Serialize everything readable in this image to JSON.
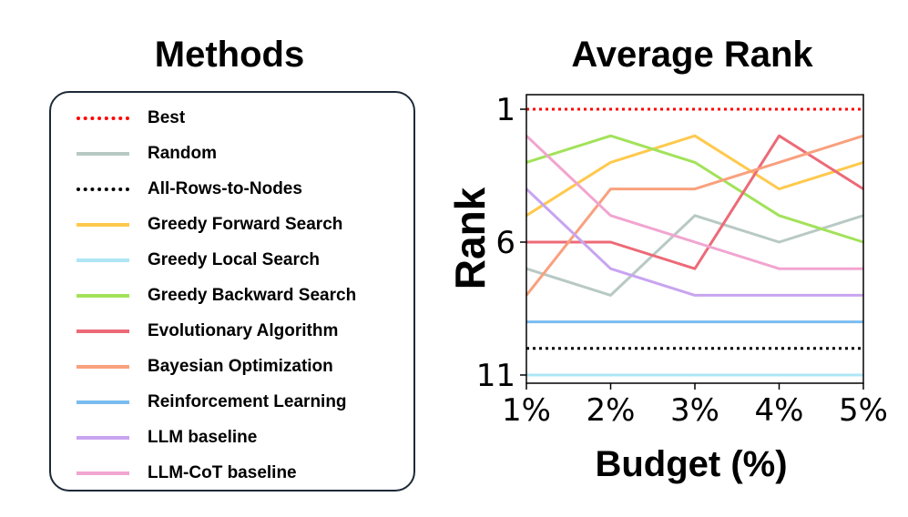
{
  "legend": {
    "title": "Methods",
    "items": [
      {
        "label": "Best",
        "color": "#ff0000",
        "dashed": true
      },
      {
        "label": "Random",
        "color": "#b8c9c4",
        "dashed": false
      },
      {
        "label": "All-Rows-to-Nodes",
        "color": "#000000",
        "dashed": true
      },
      {
        "label": "Greedy Forward Search",
        "color": "#ffc94d",
        "dashed": false
      },
      {
        "label": "Greedy Local Search",
        "color": "#aee6f5",
        "dashed": false
      },
      {
        "label": "Greedy Backward Search",
        "color": "#a2e25a",
        "dashed": false
      },
      {
        "label": "Evolutionary Algorithm",
        "color": "#ec6a77",
        "dashed": false
      },
      {
        "label": "Bayesian Optimization",
        "color": "#f9a07e",
        "dashed": false
      },
      {
        "label": "Reinforcement Learning",
        "color": "#79bcf0",
        "dashed": false
      },
      {
        "label": "LLM baseline",
        "color": "#c8a4f0",
        "dashed": false
      },
      {
        "label": "LLM-CoT baseline",
        "color": "#f1a5d0",
        "dashed": false
      }
    ]
  },
  "chart_data": {
    "type": "line",
    "title": "Average Rank",
    "xlabel": "Budget (%)",
    "ylabel": "Rank",
    "x": [
      "1%",
      "2%",
      "3%",
      "4%",
      "5%"
    ],
    "y_ticks": [
      "1",
      "6",
      "11"
    ],
    "y_tick_values": [
      1,
      6,
      11
    ],
    "ylim": [
      11,
      1
    ],
    "y_inverted": true,
    "grid": false,
    "series": [
      {
        "name": "Best",
        "color": "#ff0000",
        "dashed": true,
        "values": [
          1,
          1,
          1,
          1,
          1
        ]
      },
      {
        "name": "Random",
        "color": "#b8c9c4",
        "dashed": false,
        "values": [
          7,
          8,
          5,
          6,
          5
        ]
      },
      {
        "name": "All-Rows-to-Nodes",
        "color": "#000000",
        "dashed": true,
        "values": [
          10,
          10,
          10,
          10,
          10
        ]
      },
      {
        "name": "Greedy Forward Search",
        "color": "#ffc94d",
        "dashed": false,
        "values": [
          5,
          3,
          2,
          4,
          3
        ]
      },
      {
        "name": "Greedy Local Search",
        "color": "#aee6f5",
        "dashed": false,
        "values": [
          11,
          11,
          11,
          11,
          11
        ]
      },
      {
        "name": "Greedy Backward Search",
        "color": "#a2e25a",
        "dashed": false,
        "values": [
          3,
          2,
          3,
          5,
          6
        ]
      },
      {
        "name": "Evolutionary Algorithm",
        "color": "#ec6a77",
        "dashed": false,
        "values": [
          6,
          6,
          7,
          2,
          4
        ]
      },
      {
        "name": "Bayesian Optimization",
        "color": "#f9a07e",
        "dashed": false,
        "values": [
          8,
          4,
          4,
          3,
          2
        ]
      },
      {
        "name": "Reinforcement Learning",
        "color": "#79bcf0",
        "dashed": false,
        "values": [
          9,
          9,
          9,
          9,
          9
        ]
      },
      {
        "name": "LLM baseline",
        "color": "#c8a4f0",
        "dashed": false,
        "values": [
          4,
          7,
          8,
          8,
          8
        ]
      },
      {
        "name": "LLM-CoT baseline",
        "color": "#f1a5d0",
        "dashed": false,
        "values": [
          2,
          5,
          6,
          7,
          7
        ]
      }
    ]
  }
}
